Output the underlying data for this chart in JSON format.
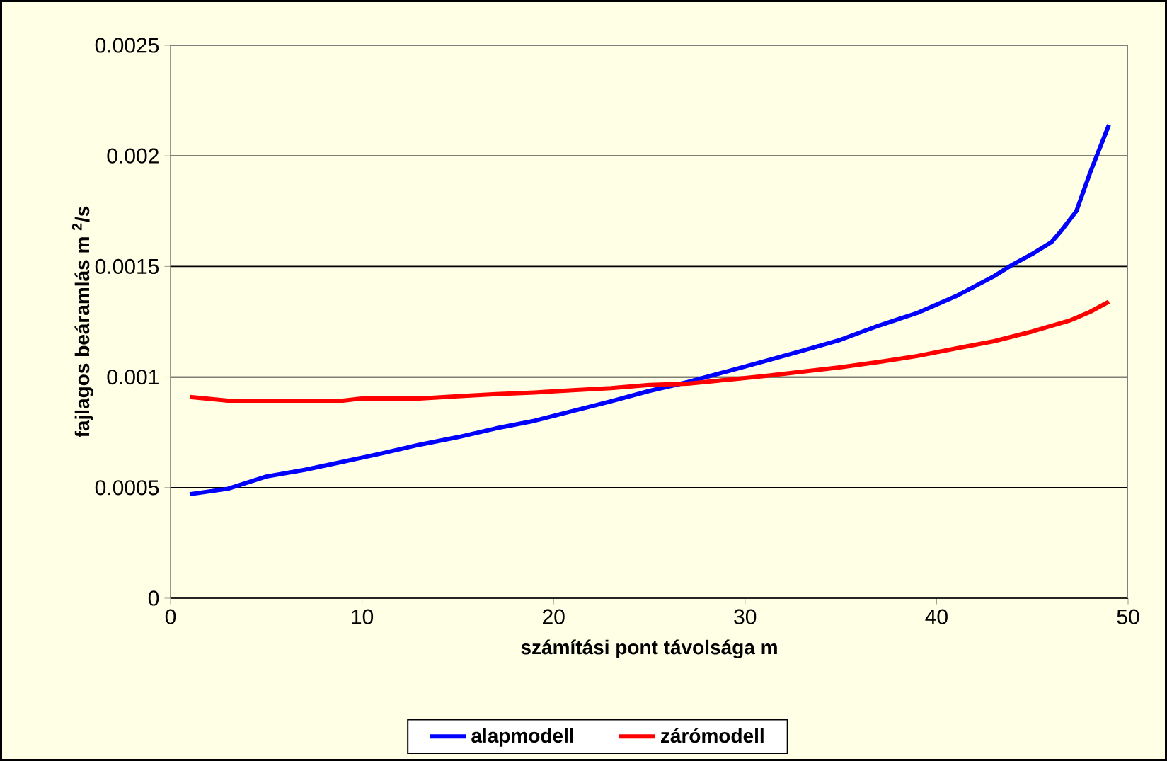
{
  "chart_data": {
    "type": "line",
    "xlabel": "számítási pont távolsága m",
    "ylabel": "fajlagos beáramlás m $^{2}$/s",
    "xlim": [
      0,
      50
    ],
    "xticks": [
      0,
      10,
      20,
      30,
      40,
      50
    ],
    "ylim": [
      0,
      0.0025
    ],
    "yticks": [
      0,
      0.0005,
      0.001,
      0.0015,
      0.002,
      0.0025
    ],
    "grid": "y",
    "legend": "bottom",
    "series": [
      {
        "name": "alapmodell",
        "color": "#0000ff",
        "x": [
          1,
          3,
          5,
          7,
          9,
          11,
          13,
          15,
          17,
          19,
          21,
          23,
          25,
          27,
          29,
          31,
          33,
          35,
          37,
          39,
          41,
          43,
          44,
          45,
          46,
          46.5,
          47.3,
          48,
          49
        ],
        "values": [
          0.00047,
          0.000495,
          0.00055,
          0.00058,
          0.000617,
          0.000654,
          0.000694,
          0.000728,
          0.000768,
          0.000802,
          0.000846,
          0.00089,
          0.000937,
          0.000977,
          0.001024,
          0.001071,
          0.001119,
          0.001169,
          0.001233,
          0.00129,
          0.001365,
          0.001456,
          0.00151,
          0.001557,
          0.00161,
          0.00166,
          0.00175,
          0.00192,
          0.00214
        ]
      },
      {
        "name": "zárómodell",
        "color": "#ff0000",
        "x": [
          1,
          3,
          5,
          7,
          9,
          10,
          13,
          15,
          17,
          19,
          21,
          23,
          25,
          27,
          29,
          31,
          33,
          35,
          37,
          39,
          41,
          43,
          45,
          47,
          48,
          49
        ],
        "values": [
          0.00091,
          0.000893,
          0.000893,
          0.000893,
          0.000893,
          0.000903,
          0.000903,
          0.000913,
          0.000923,
          0.00093,
          0.00094,
          0.00095,
          0.000964,
          0.00097,
          0.000987,
          0.001004,
          0.001024,
          0.001044,
          0.001068,
          0.001095,
          0.001129,
          0.001162,
          0.001206,
          0.001257,
          0.001294,
          0.001341
        ]
      }
    ]
  }
}
